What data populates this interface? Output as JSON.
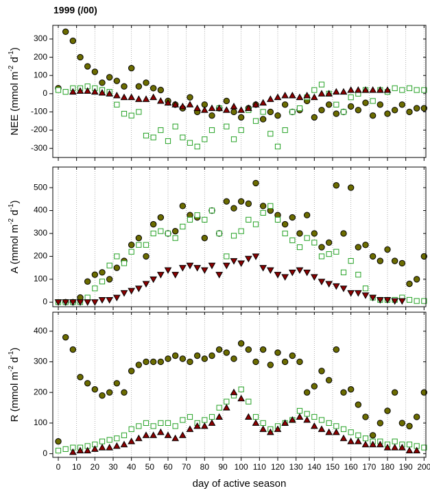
{
  "chart_data": [
    {
      "type": "scatter",
      "title": "1999 (/00)",
      "ylabel_parts": [
        "NEE (mmol m",
        "-2",
        " d",
        "-1",
        ")"
      ],
      "xlim": [
        -3,
        201
      ],
      "ylim": [
        -350,
        375
      ],
      "xticks": [
        0,
        10,
        20,
        30,
        40,
        50,
        60,
        70,
        80,
        90,
        100,
        110,
        120,
        130,
        140,
        150,
        160,
        170,
        180,
        190,
        200
      ],
      "yticks": [
        -300,
        -200,
        -100,
        0,
        100,
        200,
        300
      ],
      "grid": true,
      "x": [
        0,
        4,
        8,
        12,
        16,
        20,
        24,
        28,
        32,
        36,
        40,
        44,
        48,
        52,
        56,
        60,
        64,
        68,
        72,
        76,
        80,
        84,
        88,
        92,
        96,
        100,
        104,
        108,
        112,
        116,
        120,
        124,
        128,
        132,
        136,
        140,
        144,
        148,
        152,
        156,
        160,
        164,
        168,
        172,
        176,
        180,
        184,
        188,
        192,
        196,
        200
      ],
      "series": [
        {
          "color": "#6b6b00",
          "marker": "circle",
          "values": [
            30,
            340,
            290,
            200,
            150,
            120,
            60,
            90,
            70,
            40,
            140,
            40,
            60,
            30,
            20,
            -40,
            -60,
            -80,
            -20,
            -100,
            -60,
            -120,
            -80,
            -40,
            -100,
            -130,
            -80,
            -60,
            -140,
            -100,
            -120,
            -60,
            -100,
            -90,
            -40,
            -130,
            -90,
            -60,
            -110,
            -100,
            -70,
            -90,
            -50,
            -120,
            -60,
            -110,
            -90,
            -60,
            -100,
            -80,
            -80
          ]
        },
        {
          "color": "#22a022",
          "marker": "square",
          "values": [
            20,
            10,
            30,
            30,
            40,
            30,
            20,
            10,
            -60,
            -110,
            -120,
            -100,
            -230,
            -240,
            -200,
            -260,
            -180,
            -240,
            -270,
            -290,
            -250,
            -200,
            -80,
            -180,
            -250,
            -200,
            -90,
            -150,
            -100,
            -220,
            -290,
            -200,
            -100,
            -80,
            -20,
            20,
            50,
            0,
            -60,
            -100,
            -20,
            0,
            20,
            -40,
            20,
            10,
            30,
            20,
            30,
            20,
            20
          ]
        },
        {
          "color": "#8b0000",
          "marker": "triangle-up",
          "values": [
            null,
            null,
            10,
            15,
            15,
            10,
            5,
            0,
            -10,
            -20,
            -20,
            -30,
            -30,
            -20,
            -40,
            -50,
            -60,
            -70,
            -60,
            -80,
            -90,
            -80,
            -80,
            -90,
            -70,
            -90,
            -80,
            -60,
            -50,
            -30,
            -20,
            -10,
            -10,
            -20,
            -10,
            -20,
            0,
            0,
            10,
            10,
            20,
            20,
            20,
            20,
            20,
            20,
            null,
            null,
            null,
            null,
            null
          ]
        }
      ]
    },
    {
      "type": "scatter",
      "ylabel_parts": [
        "A (mmol m",
        "-2",
        " d",
        "-1",
        ")"
      ],
      "xlim": [
        -3,
        201
      ],
      "ylim": [
        -20,
        590
      ],
      "xticks": [
        0,
        10,
        20,
        30,
        40,
        50,
        60,
        70,
        80,
        90,
        100,
        110,
        120,
        130,
        140,
        150,
        160,
        170,
        180,
        190,
        200
      ],
      "yticks": [
        0,
        100,
        200,
        300,
        400,
        500
      ],
      "grid": true,
      "x": [
        0,
        4,
        8,
        12,
        16,
        20,
        24,
        28,
        32,
        36,
        40,
        44,
        48,
        52,
        56,
        60,
        64,
        68,
        72,
        76,
        80,
        84,
        88,
        92,
        96,
        100,
        104,
        108,
        112,
        116,
        120,
        124,
        128,
        132,
        136,
        140,
        144,
        148,
        152,
        156,
        160,
        164,
        168,
        172,
        176,
        180,
        184,
        188,
        192,
        196,
        200
      ],
      "series": [
        {
          "color": "#6b6b00",
          "marker": "circle",
          "values": [
            null,
            0,
            0,
            20,
            90,
            120,
            130,
            100,
            150,
            180,
            250,
            280,
            200,
            340,
            370,
            300,
            310,
            420,
            380,
            370,
            280,
            400,
            300,
            440,
            410,
            440,
            430,
            520,
            420,
            400,
            380,
            340,
            370,
            300,
            380,
            300,
            240,
            260,
            510,
            300,
            500,
            240,
            250,
            200,
            180,
            230,
            180,
            170,
            80,
            100,
            200
          ]
        },
        {
          "color": "#22a022",
          "marker": "square",
          "values": [
            0,
            0,
            0,
            0,
            20,
            60,
            90,
            160,
            200,
            170,
            220,
            250,
            250,
            300,
            310,
            300,
            280,
            330,
            360,
            380,
            360,
            400,
            300,
            200,
            290,
            310,
            360,
            340,
            390,
            420,
            360,
            300,
            270,
            240,
            280,
            260,
            200,
            210,
            220,
            130,
            180,
            120,
            60,
            20,
            10,
            10,
            10,
            20,
            10,
            5,
            5
          ]
        },
        {
          "color": "#8b0000",
          "marker": "triangle-down",
          "values": [
            0,
            0,
            0,
            0,
            0,
            0,
            10,
            10,
            20,
            40,
            50,
            60,
            80,
            100,
            120,
            140,
            120,
            150,
            160,
            150,
            140,
            160,
            120,
            160,
            180,
            170,
            190,
            200,
            150,
            140,
            120,
            110,
            130,
            140,
            130,
            110,
            90,
            80,
            70,
            60,
            40,
            40,
            30,
            20,
            10,
            10,
            5,
            5,
            null,
            null,
            null
          ]
        }
      ]
    },
    {
      "type": "scatter",
      "ylabel_parts": [
        "R (mmol m",
        "-2",
        " d",
        "-1",
        ")"
      ],
      "xlabel": "day of active season",
      "xlim": [
        -3,
        201
      ],
      "ylim": [
        -12,
        462
      ],
      "xticks": [
        0,
        10,
        20,
        30,
        40,
        50,
        60,
        70,
        80,
        90,
        100,
        110,
        120,
        130,
        140,
        150,
        160,
        170,
        180,
        190,
        200
      ],
      "yticks": [
        0,
        100,
        200,
        300,
        400
      ],
      "grid": true,
      "x": [
        0,
        4,
        8,
        12,
        16,
        20,
        24,
        28,
        32,
        36,
        40,
        44,
        48,
        52,
        56,
        60,
        64,
        68,
        72,
        76,
        80,
        84,
        88,
        92,
        96,
        100,
        104,
        108,
        112,
        116,
        120,
        124,
        128,
        132,
        136,
        140,
        144,
        148,
        152,
        156,
        160,
        164,
        168,
        172,
        176,
        180,
        184,
        188,
        192,
        196,
        200
      ],
      "series": [
        {
          "color": "#6b6b00",
          "marker": "circle",
          "values": [
            40,
            380,
            340,
            250,
            230,
            210,
            190,
            200,
            230,
            200,
            270,
            290,
            300,
            300,
            300,
            310,
            320,
            310,
            300,
            320,
            310,
            320,
            340,
            330,
            310,
            360,
            340,
            300,
            340,
            290,
            330,
            300,
            320,
            300,
            200,
            220,
            270,
            240,
            340,
            200,
            210,
            160,
            120,
            60,
            100,
            140,
            200,
            100,
            90,
            120,
            200
          ]
        },
        {
          "color": "#22a022",
          "marker": "square",
          "values": [
            10,
            15,
            20,
            20,
            25,
            30,
            40,
            45,
            50,
            60,
            80,
            90,
            100,
            90,
            100,
            100,
            90,
            110,
            120,
            100,
            110,
            120,
            150,
            170,
            190,
            210,
            170,
            120,
            100,
            80,
            90,
            100,
            110,
            140,
            130,
            120,
            110,
            100,
            90,
            80,
            70,
            60,
            50,
            40,
            40,
            30,
            40,
            30,
            30,
            25,
            20
          ]
        },
        {
          "color": "#8b0000",
          "marker": "triangle-up",
          "values": [
            null,
            null,
            5,
            10,
            10,
            15,
            20,
            20,
            25,
            30,
            40,
            50,
            60,
            60,
            70,
            60,
            50,
            60,
            80,
            90,
            90,
            100,
            120,
            150,
            200,
            180,
            120,
            100,
            80,
            70,
            80,
            100,
            110,
            120,
            110,
            90,
            80,
            70,
            70,
            50,
            40,
            40,
            30,
            30,
            30,
            20,
            20,
            20,
            10,
            10,
            null
          ]
        }
      ]
    }
  ]
}
